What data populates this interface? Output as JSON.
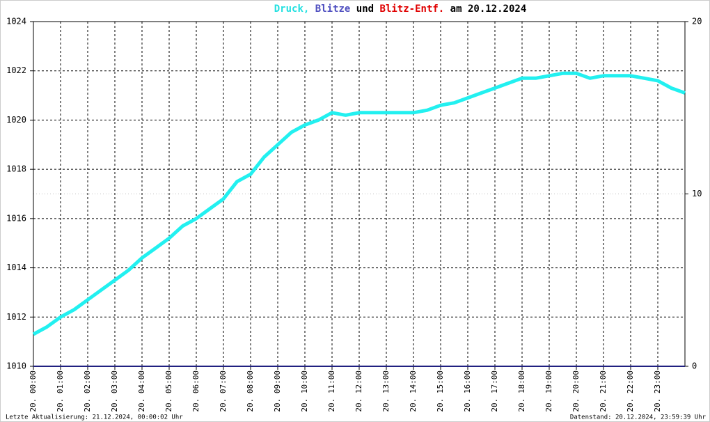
{
  "chart_data": {
    "type": "line",
    "title": [
      "Druck,",
      "Blitze",
      "und",
      "Blitz-Entf.",
      "am 20.12.2024"
    ],
    "title_colors": [
      "#22e0e0",
      "#5050c0",
      "#000000",
      "#e00000",
      "#000000"
    ],
    "xlim": [
      0,
      24
    ],
    "xticks": [
      {
        "value": 0,
        "label": "20. 00:00"
      },
      {
        "value": 1,
        "label": "20. 01:00"
      },
      {
        "value": 2,
        "label": "20. 02:00"
      },
      {
        "value": 3,
        "label": "20. 03:00"
      },
      {
        "value": 4,
        "label": "20. 04:00"
      },
      {
        "value": 5,
        "label": "20. 05:00"
      },
      {
        "value": 6,
        "label": "20. 06:00"
      },
      {
        "value": 7,
        "label": "20. 07:00"
      },
      {
        "value": 8,
        "label": "20. 08:00"
      },
      {
        "value": 9,
        "label": "20. 09:00"
      },
      {
        "value": 10,
        "label": "20. 10:00"
      },
      {
        "value": 11,
        "label": "20. 11:00"
      },
      {
        "value": 12,
        "label": "20. 12:00"
      },
      {
        "value": 13,
        "label": "20. 13:00"
      },
      {
        "value": 14,
        "label": "20. 14:00"
      },
      {
        "value": 15,
        "label": "20. 15:00"
      },
      {
        "value": 16,
        "label": "20. 16:00"
      },
      {
        "value": 17,
        "label": "20. 17:00"
      },
      {
        "value": 18,
        "label": "20. 18:00"
      },
      {
        "value": 19,
        "label": "20. 19:00"
      },
      {
        "value": 20,
        "label": "20. 20:00"
      },
      {
        "value": 21,
        "label": "20. 21:00"
      },
      {
        "value": 22,
        "label": "20. 22:00"
      },
      {
        "value": 23,
        "label": "20. 23:00"
      }
    ],
    "ylim": [
      1010,
      1024
    ],
    "yticks": [
      1010,
      1012,
      1014,
      1016,
      1018,
      1020,
      1022,
      1024
    ],
    "y2lim": [
      0,
      20
    ],
    "y2ticks": [
      0,
      10,
      20
    ],
    "grid": true,
    "series": [
      {
        "color": "#22f0f0",
        "x": [
          0,
          0.5,
          1,
          1.5,
          2,
          2.5,
          3,
          3.5,
          4,
          4.5,
          5,
          5.5,
          6,
          6.5,
          7,
          7.5,
          8,
          8.5,
          9,
          9.5,
          10,
          10.5,
          11,
          11.5,
          12,
          12.5,
          13,
          13.5,
          14,
          14.5,
          15,
          15.5,
          16,
          16.5,
          17,
          17.5,
          18,
          18.5,
          19,
          19.5,
          20,
          20.5,
          21,
          21.5,
          22,
          22.5,
          23,
          23.5,
          24
        ],
        "values": [
          1011.3,
          1011.6,
          1012.0,
          1012.3,
          1012.7,
          1013.1,
          1013.5,
          1013.9,
          1014.4,
          1014.8,
          1015.2,
          1015.7,
          1016.0,
          1016.4,
          1016.8,
          1017.5,
          1017.8,
          1018.5,
          1019.0,
          1019.5,
          1019.8,
          1020.0,
          1020.3,
          1020.2,
          1020.3,
          1020.3,
          1020.3,
          1020.3,
          1020.3,
          1020.4,
          1020.6,
          1020.7,
          1020.9,
          1021.1,
          1021.3,
          1021.5,
          1021.7,
          1021.7,
          1021.8,
          1021.9,
          1021.9,
          1021.7,
          1021.8,
          1021.8,
          1021.8,
          1021.7,
          1021.6,
          1021.3,
          1021.1
        ]
      },
      {
        "color": "#202080",
        "axis": "y2",
        "x": [
          0,
          24
        ],
        "values": [
          0,
          0
        ]
      }
    ],
    "footer_left": "Letzte Aktualisierung: 21.12.2024, 00:00:02 Uhr",
    "footer_right": "Datenstand: 20.12.2024, 23:59:39 Uhr"
  }
}
